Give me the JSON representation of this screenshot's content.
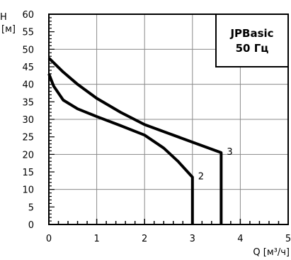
{
  "chart_data": {
    "type": "line",
    "title": "JPBasic",
    "subtitle": "50 Гц",
    "xlabel": "Q [м³/ч]",
    "ylabel_line1": "H",
    "ylabel_line2": "[м]",
    "xlim": [
      0,
      5
    ],
    "ylim": [
      0,
      60
    ],
    "x_ticks": [
      0,
      1,
      2,
      3,
      4,
      5
    ],
    "y_ticks": [
      0,
      5,
      10,
      15,
      20,
      25,
      30,
      35,
      40,
      45,
      50,
      55,
      60
    ],
    "x_minor_step": 0.2,
    "y_minor_step": 1,
    "grid": true,
    "legend_placement": "top-right",
    "series": [
      {
        "label": "2",
        "x": [
          0,
          0.1,
          0.3,
          0.6,
          1.0,
          1.5,
          2.0,
          2.4,
          2.7,
          2.9,
          3.0,
          3.0
        ],
        "y": [
          43,
          39.5,
          35.5,
          33,
          30.8,
          28.2,
          25.5,
          21.8,
          18,
          15,
          13.5,
          0
        ]
      },
      {
        "label": "3",
        "x": [
          0,
          0.3,
          0.6,
          1.0,
          1.5,
          2.0,
          2.5,
          3.0,
          3.3,
          3.6,
          3.6
        ],
        "y": [
          47.5,
          43.5,
          40,
          36,
          32,
          28.5,
          26,
          23.5,
          22,
          20.5,
          0
        ]
      }
    ]
  }
}
